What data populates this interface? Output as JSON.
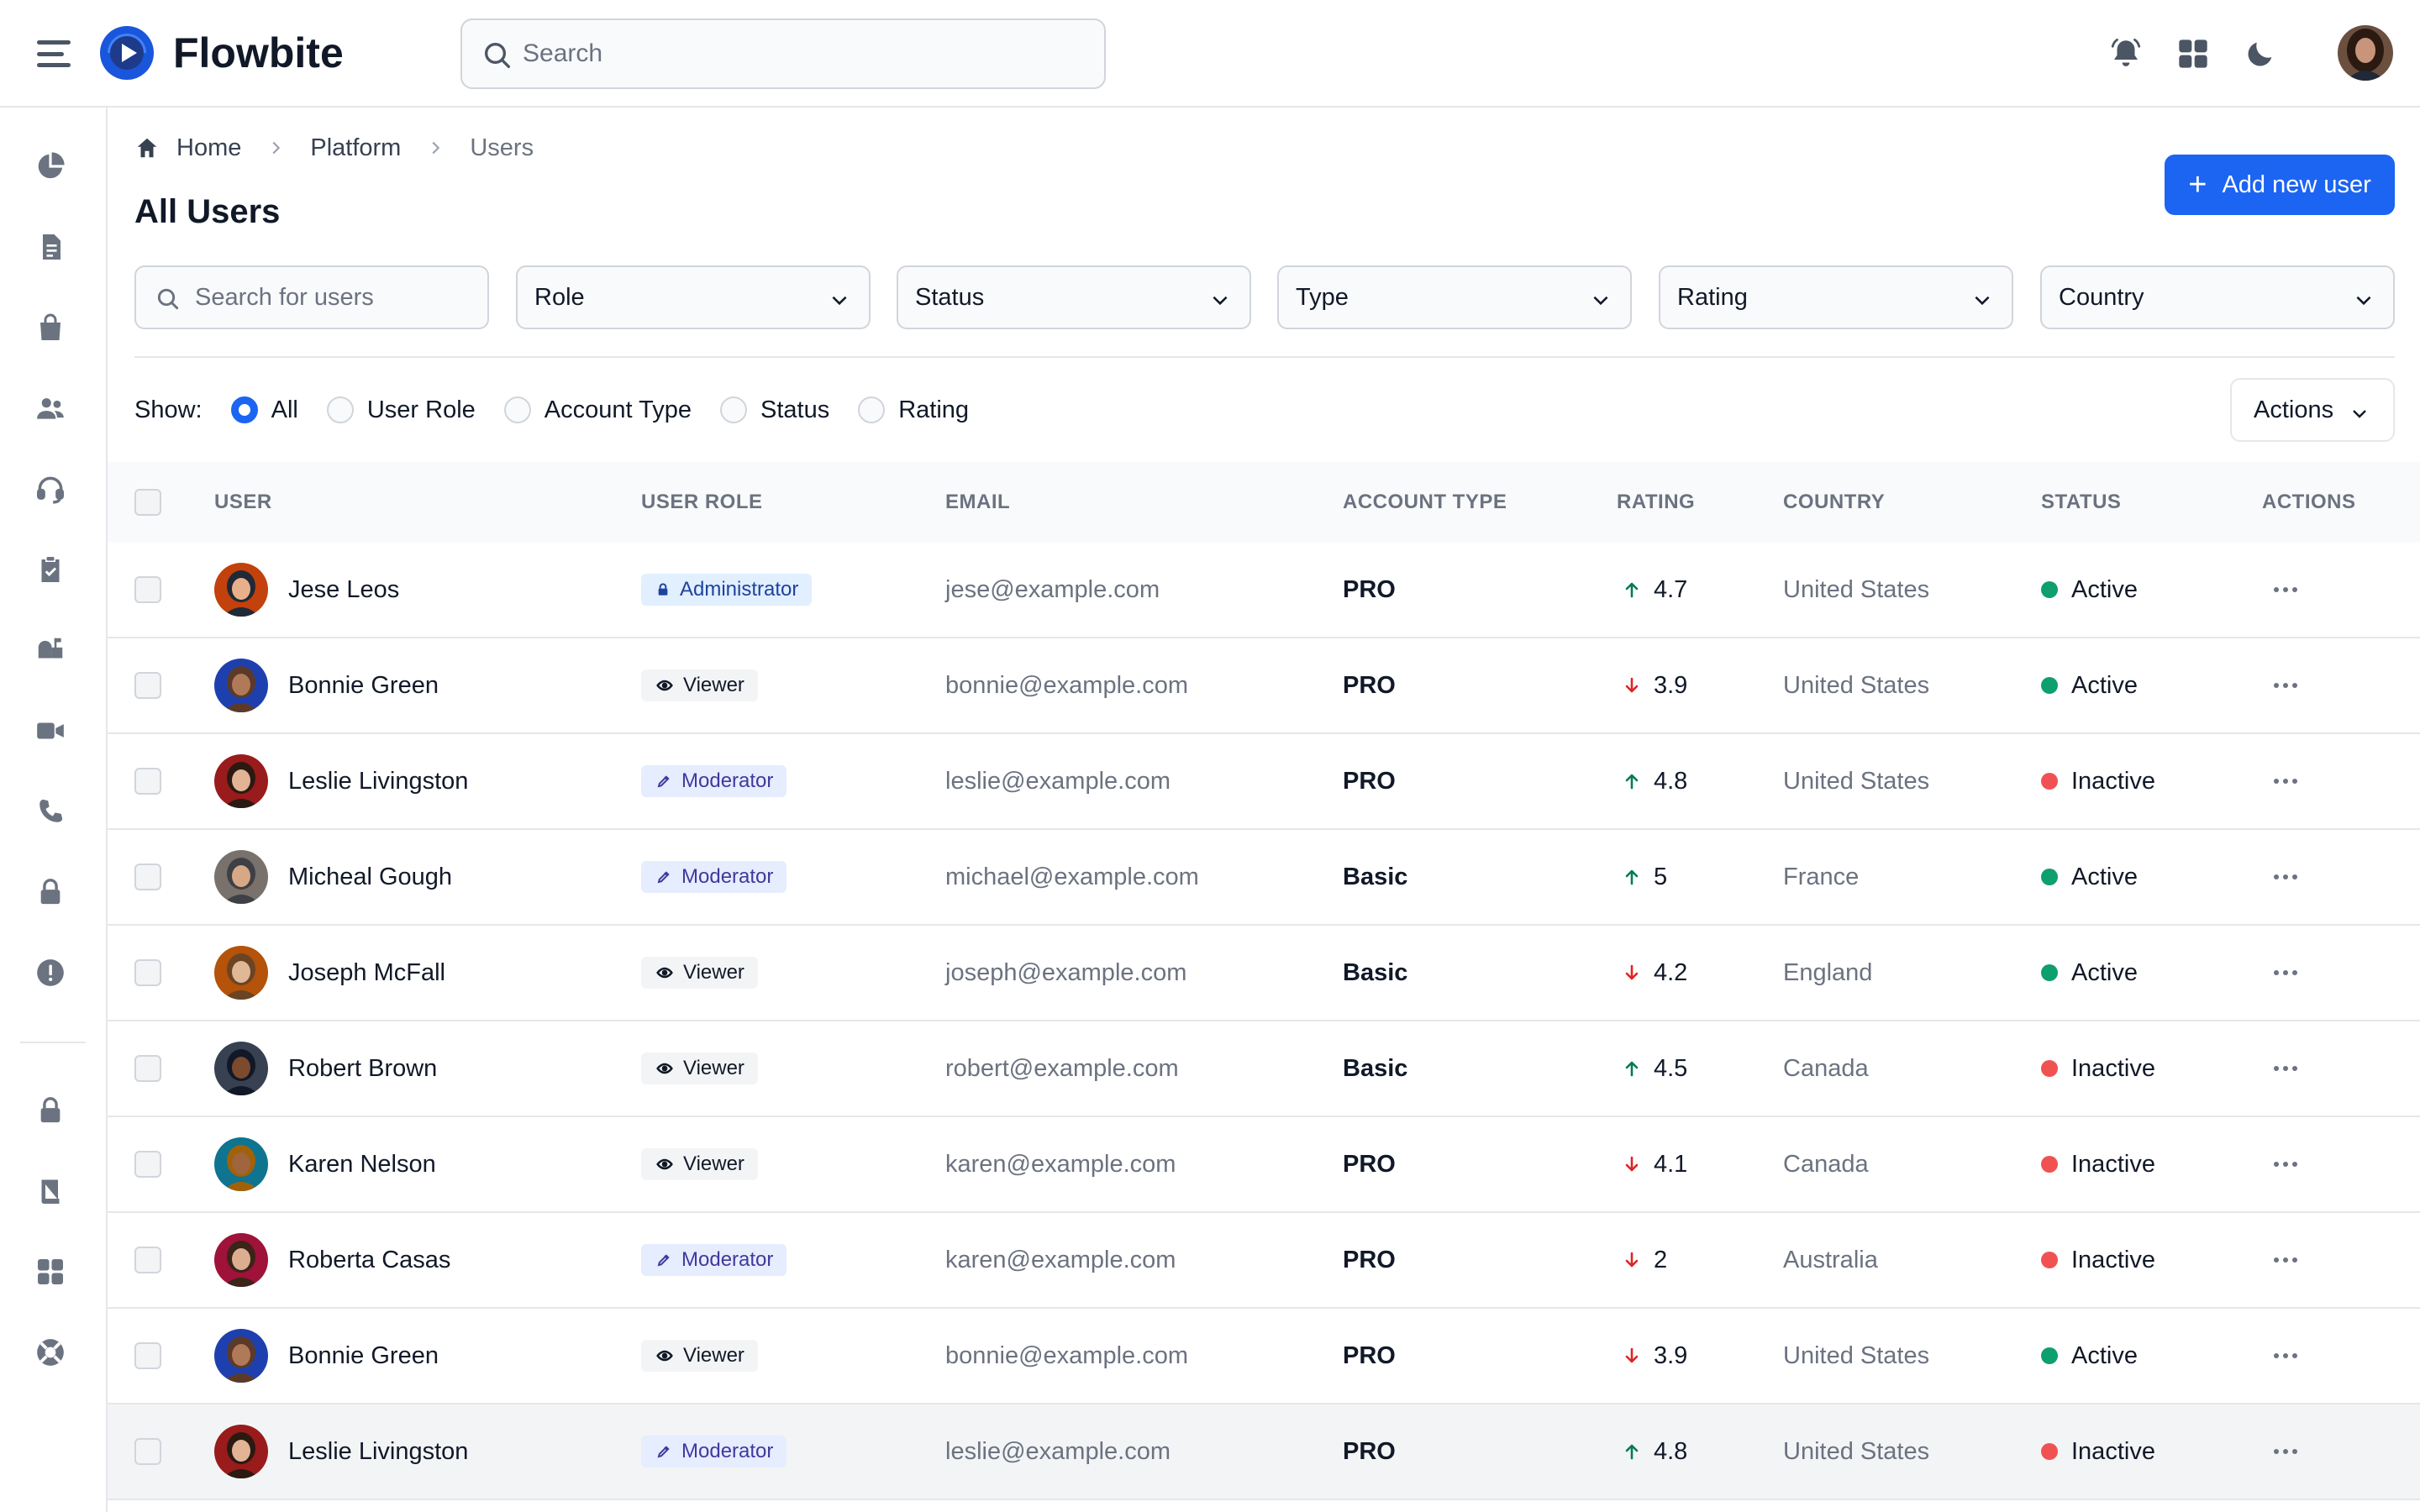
{
  "app": {
    "brand": "Flowbite",
    "search_placeholder": "Search"
  },
  "breadcrumb": [
    "Home",
    "Platform",
    "Users"
  ],
  "page_title": "All Users",
  "add_button": "Add new user",
  "filters": {
    "search_placeholder": "Search for users",
    "selects": [
      "Role",
      "Status",
      "Type",
      "Rating",
      "Country"
    ]
  },
  "show": {
    "label": "Show:",
    "options": [
      "All",
      "User Role",
      "Account Type",
      "Status",
      "Rating"
    ],
    "selected": "All"
  },
  "actions_label": "Actions",
  "table": {
    "headers": [
      "USER",
      "USER ROLE",
      "EMAIL",
      "ACCOUNT TYPE",
      "RATING",
      "COUNTRY",
      "STATUS",
      "ACTIONS"
    ],
    "rows": [
      {
        "name": "Jese Leos",
        "role": "Administrator",
        "role_icon": "lock-icon",
        "email": "jese@example.com",
        "account": "PRO",
        "trend": "up",
        "rating": "4.7",
        "country": "United States",
        "status": "Active"
      },
      {
        "name": "Bonnie Green",
        "role": "Viewer",
        "role_icon": "eye-icon",
        "email": "bonnie@example.com",
        "account": "PRO",
        "trend": "down",
        "rating": "3.9",
        "country": "United States",
        "status": "Active"
      },
      {
        "name": "Leslie Livingston",
        "role": "Moderator",
        "role_icon": "pen-icon",
        "email": "leslie@example.com",
        "account": "PRO",
        "trend": "up",
        "rating": "4.8",
        "country": "United States",
        "status": "Inactive"
      },
      {
        "name": "Micheal Gough",
        "role": "Moderator",
        "role_icon": "pen-icon",
        "email": "michael@example.com",
        "account": "Basic",
        "trend": "up",
        "rating": "5",
        "country": "France",
        "status": "Active"
      },
      {
        "name": "Joseph McFall",
        "role": "Viewer",
        "role_icon": "eye-icon",
        "email": "joseph@example.com",
        "account": "Basic",
        "trend": "down",
        "rating": "4.2",
        "country": "England",
        "status": "Active"
      },
      {
        "name": "Robert Brown",
        "role": "Viewer",
        "role_icon": "eye-icon",
        "email": "robert@example.com",
        "account": "Basic",
        "trend": "up",
        "rating": "4.5",
        "country": "Canada",
        "status": "Inactive"
      },
      {
        "name": "Karen Nelson",
        "role": "Viewer",
        "role_icon": "eye-icon",
        "email": "karen@example.com",
        "account": "PRO",
        "trend": "down",
        "rating": "4.1",
        "country": "Canada",
        "status": "Inactive"
      },
      {
        "name": "Roberta Casas",
        "role": "Moderator",
        "role_icon": "pen-icon",
        "email": "karen@example.com",
        "account": "PRO",
        "trend": "down",
        "rating": "2",
        "country": "Australia",
        "status": "Inactive"
      },
      {
        "name": "Bonnie Green",
        "role": "Viewer",
        "role_icon": "eye-icon",
        "email": "bonnie@example.com",
        "account": "PRO",
        "trend": "down",
        "rating": "3.9",
        "country": "United States",
        "status": "Active"
      },
      {
        "name": "Leslie Livingston",
        "role": "Moderator",
        "role_icon": "pen-icon",
        "email": "leslie@example.com",
        "account": "PRO",
        "trend": "up",
        "rating": "4.8",
        "country": "United States",
        "status": "Inactive"
      }
    ]
  },
  "colors": {
    "primary": "#1c64f2",
    "active": "#0e9f6e",
    "inactive": "#f05252",
    "trend_up": "#057a55",
    "trend_down": "#e02424"
  }
}
